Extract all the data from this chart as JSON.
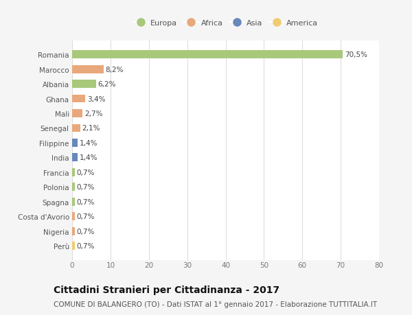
{
  "countries": [
    "Romania",
    "Marocco",
    "Albania",
    "Ghana",
    "Mali",
    "Senegal",
    "Filippine",
    "India",
    "Francia",
    "Polonia",
    "Spagna",
    "Costa d'Avorio",
    "Nigeria",
    "Perù"
  ],
  "values": [
    70.5,
    8.2,
    6.2,
    3.4,
    2.7,
    2.1,
    1.4,
    1.4,
    0.7,
    0.7,
    0.7,
    0.7,
    0.7,
    0.7
  ],
  "labels": [
    "70,5%",
    "8,2%",
    "6,2%",
    "3,4%",
    "2,7%",
    "2,1%",
    "1,4%",
    "1,4%",
    "0,7%",
    "0,7%",
    "0,7%",
    "0,7%",
    "0,7%",
    "0,7%"
  ],
  "continents": [
    "Europa",
    "Africa",
    "Europa",
    "Africa",
    "Africa",
    "Africa",
    "Asia",
    "Asia",
    "Europa",
    "Europa",
    "Europa",
    "Africa",
    "Africa",
    "America"
  ],
  "continent_colors": {
    "Europa": "#a8c87a",
    "Africa": "#e8a87c",
    "Asia": "#6688bb",
    "America": "#f0cc70"
  },
  "legend_order": [
    "Europa",
    "Africa",
    "Asia",
    "America"
  ],
  "xlim": [
    0,
    80
  ],
  "xticks": [
    0,
    10,
    20,
    30,
    40,
    50,
    60,
    70,
    80
  ],
  "title": "Cittadini Stranieri per Cittadinanza - 2017",
  "subtitle": "COMUNE DI BALANGERO (TO) - Dati ISTAT al 1° gennaio 2017 - Elaborazione TUTTITALIA.IT",
  "bg_color": "#f5f5f5",
  "plot_bg_color": "#ffffff",
  "grid_color": "#dddddd",
  "title_fontsize": 10,
  "subtitle_fontsize": 7.5,
  "label_fontsize": 7.5,
  "tick_fontsize": 7.5,
  "legend_fontsize": 8,
  "bar_height": 0.55
}
